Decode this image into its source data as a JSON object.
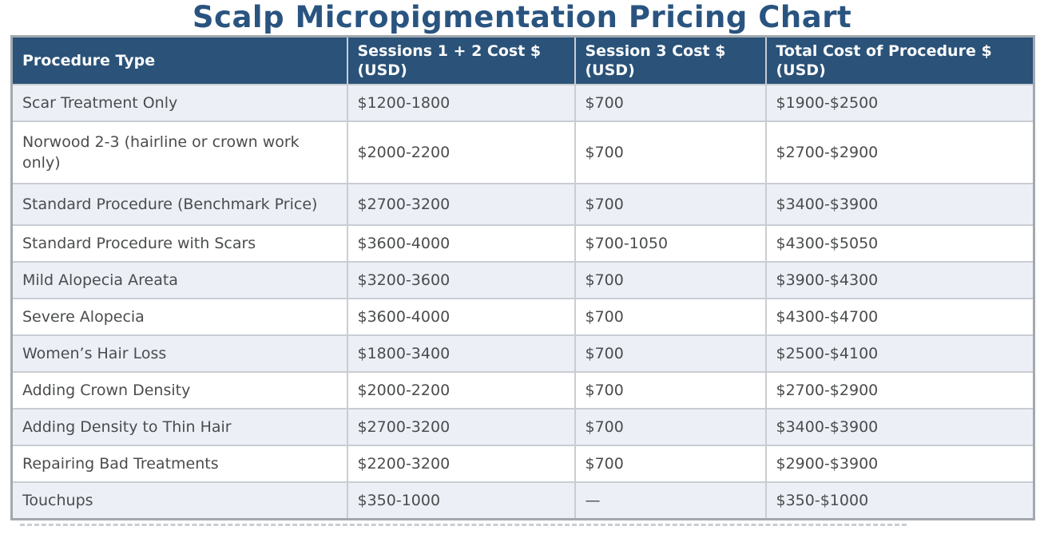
{
  "chart_data": {
    "type": "table",
    "title": "Scalp Micropigmentation Pricing Chart",
    "columns": [
      "Procedure Type",
      "Sessions 1 + 2 Cost $ (USD)",
      "Session 3 Cost $ (USD)",
      "Total Cost of Procedure $ (USD)"
    ],
    "rows": [
      [
        "Scar Treatment Only",
        "$1200-1800",
        "$700",
        "$1900-$2500"
      ],
      [
        "Norwood 2-3 (hairline or crown work only)",
        "$2000-2200",
        "$700",
        "$2700-$2900"
      ],
      [
        "Standard Procedure (Benchmark Price)",
        "$2700-3200",
        "$700",
        "$3400-$3900"
      ],
      [
        "Standard Procedure with Scars",
        "$3600-4000",
        "$700-1050",
        "$4300-$5050"
      ],
      [
        "Mild Alopecia Areata",
        "$3200-3600",
        "$700",
        "$3900-$4300"
      ],
      [
        "Severe Alopecia",
        "$3600-4000",
        "$700",
        "$4300-$4700"
      ],
      [
        "Women’s Hair Loss",
        "$1800-3400",
        "$700",
        "$2500-$4100"
      ],
      [
        "Adding Crown Density",
        "$2000-2200",
        "$700",
        "$2700-$2900"
      ],
      [
        "Adding Density to Thin Hair",
        "$2700-3200",
        "$700",
        "$3400-$3900"
      ],
      [
        "Repairing Bad Treatments",
        "$2200-3200",
        "$700",
        "$2900-$3900"
      ],
      [
        "Touchups",
        "$350-1000",
        "—",
        "$350-$1000"
      ]
    ],
    "layout": {
      "legend": "none",
      "grid": "cell-borders",
      "row_striping": "odd-rows-shaded"
    }
  },
  "colors": {
    "title_text": "#2a5480",
    "header_background": "#2b5278",
    "header_text": "#fafcfd",
    "row_alt_background": "#ecf0f6",
    "row_plain_background": "#ffffff",
    "cell_text": "#4a4c4e",
    "outer_border": "#a2a8ae",
    "inner_border": "#c9cdd3"
  }
}
